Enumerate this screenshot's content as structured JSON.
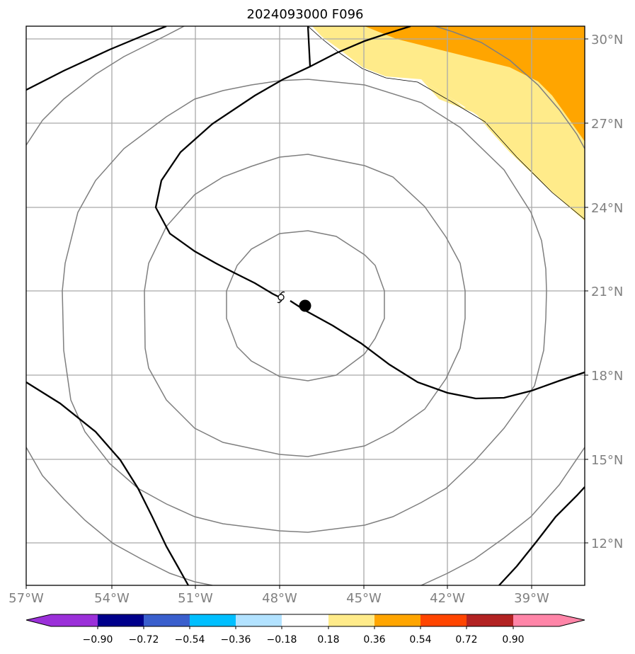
{
  "title": "2024093000 F096",
  "lat_labels": [
    "30°N",
    "27°N",
    "24°N",
    "21°N",
    "18°N",
    "15°N",
    "12°N"
  ],
  "lon_labels": [
    "57°W",
    "54°W",
    "51°W",
    "48°W",
    "45°W",
    "42°W",
    "39°W"
  ],
  "colorbar": {
    "tick_labels": [
      "−0.90",
      "−0.72",
      "−0.54",
      "−0.36",
      "−0.18",
      "0.18",
      "0.36",
      "0.54",
      "0.72",
      "0.90"
    ],
    "colors": {
      "under": "#9b30d9",
      "bins": [
        "#9b30d9",
        "#00008b",
        "#3a5fcd",
        "#00bfff",
        "#b2e2ff",
        "#ffffff",
        "#ffeb8a",
        "#ffa500",
        "#ff4500",
        "#b22222",
        "#ff85a8"
      ],
      "over": "#ff85a8"
    }
  },
  "map": {
    "extent_lon": [
      -57,
      -37
    ],
    "extent_lat": [
      10.5,
      30.5
    ],
    "shading": {
      "light_band_color": "#ffeb8a",
      "dark_region_color": "#ffa500"
    },
    "markers": {
      "storm_center_color": "#000000",
      "track_symbol": "hurricane-symbol"
    }
  }
}
